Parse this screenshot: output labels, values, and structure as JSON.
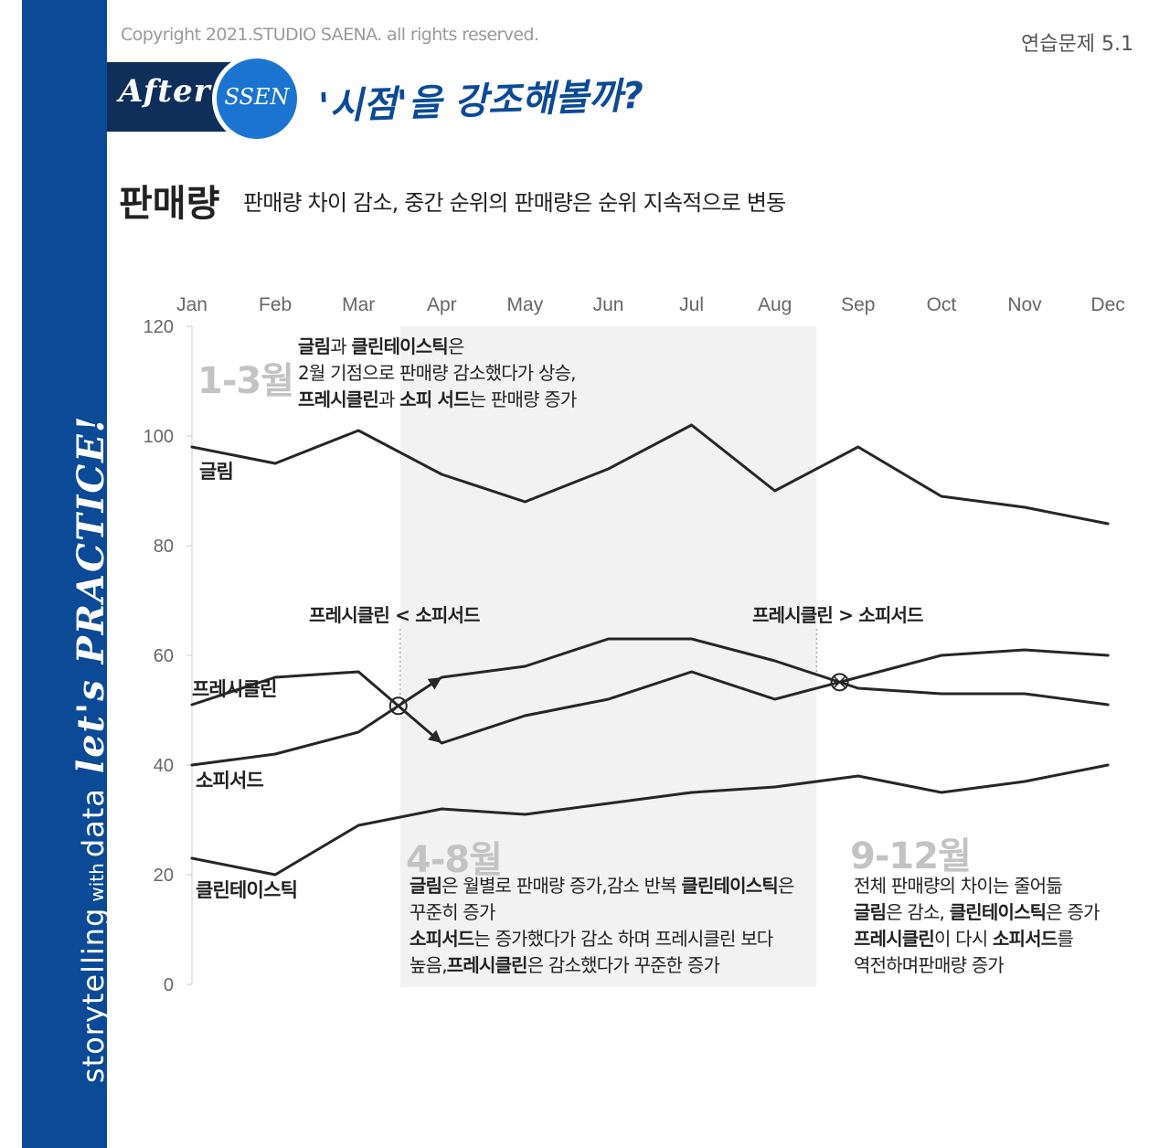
{
  "header": {
    "copyright": "Copyright 2021.STUDIO SAENA. all rights reserved.",
    "practice_label": "연습문제 5.1",
    "banner_after": "After",
    "banner_ssen": "SSEN",
    "headline": "'시점'을 강조해볼까?",
    "title": "판매량",
    "subtitle": "판매량 차이 감소, 중간 순위의 판매량은 순위 지속적으로 변동"
  },
  "sidebar": {
    "text_storytelling": "storytelling",
    "text_with": "with",
    "text_data": "data",
    "text_script": "let's PRACTICE!"
  },
  "colors": {
    "sidebar": "#0b4a96",
    "banner_dark": "#0d2f5a",
    "banner_circle": "#1b75d0",
    "line": "#262626",
    "highlight_band": "#f2f2f2",
    "period_label": "#c3c3c3"
  },
  "periods": {
    "p1": "1-3월",
    "p2": "4-8월",
    "p3": "9-12월"
  },
  "annotations": {
    "p1": [
      [
        {
          "t": "글림",
          "b": true
        },
        {
          "t": "과 ",
          "b": false
        },
        {
          "t": "클린테이스틱",
          "b": true
        },
        {
          "t": "은",
          "b": false
        }
      ],
      [
        {
          "t": "2월 기점으로 판매량 감소했다가 상승,",
          "b": false
        }
      ],
      [
        {
          "t": "프레시클린",
          "b": true
        },
        {
          "t": "과 ",
          "b": false
        },
        {
          "t": "소피 서드",
          "b": true
        },
        {
          "t": "는 판매량 증가",
          "b": false
        }
      ]
    ],
    "p2": [
      [
        {
          "t": "글림",
          "b": true
        },
        {
          "t": "은 월별로 판매량 증가,감소 반복 ",
          "b": false
        },
        {
          "t": "클린테이스틱",
          "b": true
        },
        {
          "t": "은",
          "b": false
        }
      ],
      [
        {
          "t": "꾸준히 증가",
          "b": false
        }
      ],
      [
        {
          "t": "소피서드",
          "b": true
        },
        {
          "t": "는 증가했다가 감소 하며  프레시클린 보다",
          "b": false
        }
      ],
      [
        {
          "t": "높음,",
          "b": false
        },
        {
          "t": "프레시클린",
          "b": true
        },
        {
          "t": "은 감소했다가 꾸준한 증가",
          "b": false
        }
      ]
    ],
    "p3": [
      [
        {
          "t": "전체 판매량의 차이는 줄어듦",
          "b": false
        }
      ],
      [
        {
          "t": "글림",
          "b": true
        },
        {
          "t": "은 감소, ",
          "b": false
        },
        {
          "t": "클린테이스틱",
          "b": true
        },
        {
          "t": "은 증가",
          "b": false
        }
      ],
      [
        {
          "t": "프레시클린",
          "b": true
        },
        {
          "t": "이 다시 ",
          "b": false
        },
        {
          "t": "소피서드",
          "b": true
        },
        {
          "t": "를",
          "b": false
        }
      ],
      [
        {
          "t": "역전하며판매량 증가",
          "b": false
        }
      ]
    ],
    "cross1": "프레시클린 < 소피서드",
    "cross2": "프레시클린 > 소피서드"
  },
  "chart_data": {
    "type": "line",
    "title": "판매량",
    "subtitle": "판매량 차이 감소, 중간 순위의 판매량은 순위 지속적으로 변동",
    "categories": [
      "Jan",
      "Feb",
      "Mar",
      "Apr",
      "May",
      "Jun",
      "Jul",
      "Aug",
      "Sep",
      "Oct",
      "Nov",
      "Dec"
    ],
    "ylim": [
      0,
      120
    ],
    "yticks": [
      0,
      20,
      40,
      60,
      80,
      100,
      120
    ],
    "grid": false,
    "legend": "direct labels at line starts",
    "highlight": {
      "from": "Apr",
      "to": "Aug"
    },
    "series": [
      {
        "name": "글림",
        "values": [
          98,
          95,
          101,
          93,
          88,
          94,
          102,
          90,
          98,
          89,
          87,
          84
        ]
      },
      {
        "name": "프레시클린",
        "values": [
          51,
          56,
          57,
          44,
          49,
          52,
          57,
          52,
          56,
          60,
          61,
          60
        ]
      },
      {
        "name": "소피서드",
        "values": [
          40,
          42,
          46,
          56,
          58,
          63,
          63,
          59,
          54,
          53,
          53,
          51
        ]
      },
      {
        "name": "클린테이스틱",
        "values": [
          23,
          20,
          29,
          32,
          31,
          33,
          35,
          36,
          38,
          35,
          37,
          40
        ]
      }
    ]
  }
}
